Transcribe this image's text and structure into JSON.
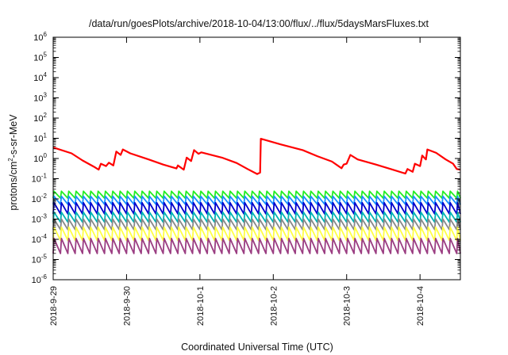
{
  "chart_data": {
    "type": "line",
    "title": "/data/run/goesPlots/archive/2018-10-04/13:00/flux/../flux/5daysMarsFluxes.txt",
    "xlabel": "Coordinated Universal Time (UTC)",
    "ylabel_parts": {
      "base": "protons/cm",
      "sup": "2",
      "rest": "-s-sr-MeV"
    },
    "y_scale": "log",
    "ylim_exponents": [
      -6,
      6
    ],
    "y_tick_base": "10",
    "y_tick_exponents": [
      "-6",
      "-5",
      "-4",
      "-3",
      "-2",
      "-1",
      "0",
      "1",
      "2",
      "3",
      "4",
      "5",
      "6"
    ],
    "xlim_days": [
      0,
      5.55
    ],
    "x_ticks": [
      {
        "label": "2018-9-29",
        "day": 0
      },
      {
        "label": "2018-9-30",
        "day": 1
      },
      {
        "label": "2018-10-1",
        "day": 2
      },
      {
        "label": "2018-10-2",
        "day": 3
      },
      {
        "label": "2018-10-3",
        "day": 4
      },
      {
        "label": "2018-10-4",
        "day": 5
      }
    ],
    "grid": false,
    "legend": "none",
    "sawtooth_period_days": 0.1,
    "series": [
      {
        "color": "#ff0000",
        "style": "thick",
        "points": [
          [
            0.0,
            3.5
          ],
          [
            0.25,
            1.8
          ],
          [
            0.4,
            0.8
          ],
          [
            0.55,
            0.4
          ],
          [
            0.62,
            0.28
          ],
          [
            0.65,
            0.55
          ],
          [
            0.72,
            0.42
          ],
          [
            0.76,
            0.62
          ],
          [
            0.82,
            0.45
          ],
          [
            0.86,
            2.2
          ],
          [
            0.92,
            1.5
          ],
          [
            0.95,
            2.8
          ],
          [
            1.05,
            1.8
          ],
          [
            1.3,
            0.9
          ],
          [
            1.5,
            0.5
          ],
          [
            1.68,
            0.32
          ],
          [
            1.7,
            0.45
          ],
          [
            1.78,
            0.28
          ],
          [
            1.82,
            1.1
          ],
          [
            1.88,
            0.75
          ],
          [
            1.92,
            2.6
          ],
          [
            1.98,
            1.7
          ],
          [
            2.02,
            2.0
          ],
          [
            2.3,
            1.1
          ],
          [
            2.5,
            0.6
          ],
          [
            2.65,
            0.3
          ],
          [
            2.78,
            0.17
          ],
          [
            2.82,
            0.2
          ],
          [
            2.83,
            9.5
          ],
          [
            3.1,
            5.0
          ],
          [
            3.4,
            2.6
          ],
          [
            3.6,
            1.3
          ],
          [
            3.8,
            0.7
          ],
          [
            3.93,
            0.33
          ],
          [
            3.96,
            0.5
          ],
          [
            4.0,
            0.55
          ],
          [
            4.05,
            1.5
          ],
          [
            4.15,
            0.9
          ],
          [
            4.4,
            0.5
          ],
          [
            4.6,
            0.3
          ],
          [
            4.8,
            0.18
          ],
          [
            4.83,
            0.3
          ],
          [
            4.9,
            0.22
          ],
          [
            4.93,
            0.55
          ],
          [
            5.0,
            0.42
          ],
          [
            5.03,
            1.4
          ],
          [
            5.08,
            0.9
          ],
          [
            5.1,
            2.8
          ],
          [
            5.22,
            1.9
          ],
          [
            5.35,
            0.9
          ],
          [
            5.45,
            0.55
          ],
          [
            5.5,
            0.3
          ],
          [
            5.55,
            0.28
          ]
        ]
      },
      {
        "color": "#22ee22",
        "base": 0.024,
        "min_factor": 0.45
      },
      {
        "color": "#1890ff",
        "base": 0.0135,
        "min_factor": 0.4
      },
      {
        "color": "#0000cc",
        "base": 0.0065,
        "min_factor": 0.28
      },
      {
        "color": "#00b4b4",
        "base": 0.0022,
        "min_factor": 0.32
      },
      {
        "color": "#888888",
        "base": 0.001,
        "min_factor": 0.3
      },
      {
        "color": "#ffff44",
        "base": 0.0004,
        "min_factor": 0.22
      },
      {
        "color": "#9b3e82",
        "base": 0.00011,
        "min_factor": 0.18
      }
    ]
  }
}
